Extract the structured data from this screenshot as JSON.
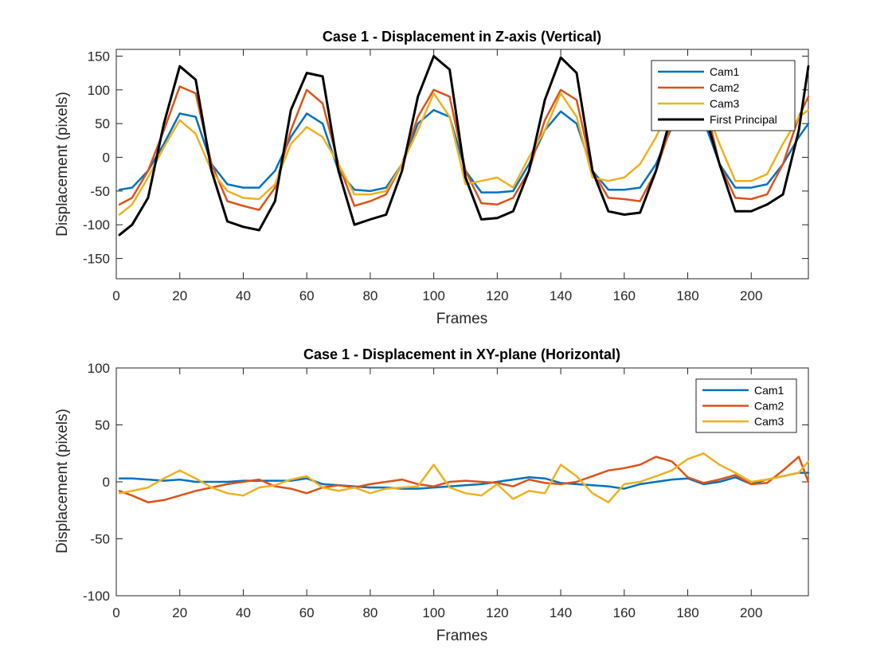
{
  "chart_data": [
    {
      "type": "line",
      "title": "Case 1 - Displacement in Z-axis (Vertical)",
      "xlabel": "Frames",
      "ylabel": "Displacement (pixels)",
      "xlim": [
        0,
        218
      ],
      "ylim": [
        -180,
        160
      ],
      "xticks": [
        0,
        20,
        40,
        60,
        80,
        100,
        120,
        140,
        160,
        180,
        200
      ],
      "yticks": [
        -150,
        -100,
        -50,
        0,
        50,
        100,
        150
      ],
      "grid": false,
      "legend_position": "top-right",
      "x": [
        1,
        5,
        10,
        15,
        20,
        25,
        30,
        35,
        40,
        45,
        50,
        55,
        60,
        65,
        70,
        75,
        80,
        85,
        90,
        95,
        100,
        105,
        110,
        115,
        120,
        125,
        130,
        135,
        140,
        145,
        150,
        155,
        160,
        165,
        170,
        175,
        180,
        185,
        190,
        195,
        200,
        205,
        210,
        215,
        218
      ],
      "series": [
        {
          "name": "Cam1",
          "color": "#0072BD",
          "width": 2.5,
          "values": [
            -48,
            -45,
            -20,
            20,
            65,
            60,
            -10,
            -40,
            -45,
            -45,
            -20,
            30,
            65,
            50,
            -20,
            -48,
            -50,
            -45,
            -10,
            50,
            70,
            60,
            -20,
            -52,
            -52,
            -50,
            -10,
            40,
            68,
            50,
            -20,
            -48,
            -48,
            -45,
            -10,
            45,
            60,
            55,
            -10,
            -45,
            -45,
            -40,
            -10,
            30,
            50
          ]
        },
        {
          "name": "Cam2",
          "color": "#D95319",
          "width": 2.5,
          "values": [
            -70,
            -60,
            -20,
            40,
            105,
            95,
            -10,
            -65,
            -72,
            -78,
            -45,
            40,
            100,
            80,
            -10,
            -72,
            -65,
            -55,
            -10,
            60,
            100,
            90,
            -20,
            -68,
            -70,
            -60,
            -20,
            55,
            100,
            85,
            -20,
            -60,
            -62,
            -65,
            -20,
            50,
            100,
            90,
            -10,
            -60,
            -62,
            -55,
            -10,
            60,
            90
          ]
        },
        {
          "name": "Cam3",
          "color": "#EDB120",
          "width": 2.5,
          "values": [
            -85,
            -70,
            -30,
            15,
            55,
            35,
            -20,
            -50,
            -60,
            -62,
            -40,
            20,
            45,
            30,
            -10,
            -55,
            -55,
            -50,
            -10,
            40,
            95,
            60,
            -40,
            -35,
            -30,
            -45,
            0,
            40,
            95,
            60,
            -30,
            -35,
            -30,
            -10,
            30,
            80,
            85,
            80,
            20,
            -35,
            -35,
            -25,
            20,
            60,
            70
          ]
        },
        {
          "name": "First Principal",
          "color": "#000000",
          "width": 3,
          "values": [
            -115,
            -100,
            -60,
            50,
            135,
            115,
            -20,
            -95,
            -103,
            -108,
            -65,
            70,
            125,
            120,
            -20,
            -100,
            -92,
            -85,
            -20,
            90,
            150,
            130,
            -30,
            -92,
            -90,
            -80,
            -20,
            85,
            148,
            125,
            -20,
            -80,
            -85,
            -82,
            -20,
            65,
            100,
            70,
            -10,
            -80,
            -80,
            -70,
            -55,
            40,
            135
          ]
        }
      ]
    },
    {
      "type": "line",
      "title": "Case 1 - Displacement in XY-plane (Horizontal)",
      "xlabel": "Frames",
      "ylabel": "Displacement (pixels)",
      "xlim": [
        0,
        218
      ],
      "ylim": [
        -100,
        100
      ],
      "xticks": [
        0,
        20,
        40,
        60,
        80,
        100,
        120,
        140,
        160,
        180,
        200
      ],
      "yticks": [
        -100,
        -50,
        0,
        50,
        100
      ],
      "grid": false,
      "legend_position": "top-right",
      "x": [
        1,
        5,
        10,
        15,
        20,
        25,
        30,
        35,
        40,
        45,
        50,
        55,
        60,
        65,
        70,
        75,
        80,
        85,
        90,
        95,
        100,
        105,
        110,
        115,
        120,
        125,
        130,
        135,
        140,
        145,
        150,
        155,
        160,
        165,
        170,
        175,
        180,
        185,
        190,
        195,
        200,
        205,
        210,
        215,
        218
      ],
      "series": [
        {
          "name": "Cam1",
          "color": "#0072BD",
          "width": 2.5,
          "values": [
            3,
            3,
            2,
            1,
            2,
            0,
            0,
            0,
            1,
            1,
            1,
            1,
            3,
            -2,
            -3,
            -4,
            -5,
            -5,
            -6,
            -6,
            -5,
            -4,
            -3,
            -2,
            0,
            2,
            4,
            3,
            -1,
            -2,
            -3,
            -4,
            -6,
            -2,
            0,
            2,
            3,
            -2,
            0,
            4,
            -2,
            2,
            5,
            8,
            8
          ]
        },
        {
          "name": "Cam2",
          "color": "#D95319",
          "width": 2.5,
          "values": [
            -8,
            -12,
            -18,
            -16,
            -12,
            -8,
            -5,
            -2,
            0,
            2,
            -4,
            -6,
            -10,
            -5,
            -3,
            -5,
            -2,
            0,
            2,
            -2,
            -4,
            0,
            1,
            0,
            -1,
            -4,
            2,
            -1,
            -2,
            0,
            5,
            10,
            12,
            15,
            22,
            18,
            4,
            -1,
            2,
            6,
            -2,
            -1,
            10,
            22,
            0
          ]
        },
        {
          "name": "Cam3",
          "color": "#EDB120",
          "width": 2.5,
          "values": [
            -10,
            -8,
            -5,
            3,
            10,
            3,
            -5,
            -10,
            -12,
            -5,
            -3,
            2,
            5,
            -5,
            -8,
            -5,
            -10,
            -6,
            -5,
            -4,
            15,
            -5,
            -10,
            -12,
            -2,
            -15,
            -8,
            -10,
            15,
            5,
            -10,
            -18,
            -2,
            0,
            5,
            10,
            20,
            25,
            15,
            8,
            0,
            2,
            5,
            8,
            18
          ]
        }
      ]
    }
  ]
}
